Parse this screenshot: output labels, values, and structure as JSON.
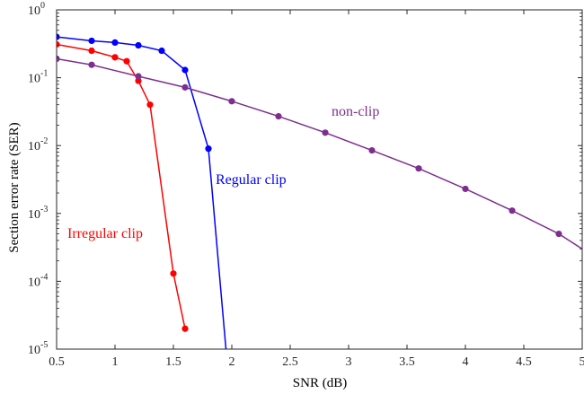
{
  "chart_data": {
    "type": "line",
    "xlabel": "SNR (dB)",
    "ylabel": "Section error rate (SER)",
    "xlim": [
      0.5,
      5
    ],
    "ylim": [
      1e-05,
      1
    ],
    "yscale": "log",
    "grid": false,
    "x_ticks": [
      0.5,
      1,
      1.5,
      2,
      2.5,
      3,
      3.5,
      4,
      4.5,
      5
    ],
    "x_tick_labels": [
      "0.5",
      "1",
      "1.5",
      "2",
      "2.5",
      "3",
      "3.5",
      "4",
      "4.5",
      "5"
    ],
    "y_ticks": [
      {
        "value": 1,
        "base": "10",
        "exp": "0"
      },
      {
        "value": 0.1,
        "base": "10",
        "exp": "-1"
      },
      {
        "value": 0.01,
        "base": "10",
        "exp": "-2"
      },
      {
        "value": 0.001,
        "base": "10",
        "exp": "-3"
      },
      {
        "value": 0.0001,
        "base": "10",
        "exp": "-4"
      },
      {
        "value": 1e-05,
        "base": "10",
        "exp": "-5"
      }
    ],
    "series": [
      {
        "name": "Irregular clip",
        "color": "#ff0000",
        "x": [
          0.5,
          0.8,
          1.0,
          1.1,
          1.2,
          1.3,
          1.5,
          1.6
        ],
        "y": [
          0.31,
          0.25,
          0.2,
          0.175,
          0.09,
          0.04,
          0.00013,
          2e-05
        ],
        "markers": true
      },
      {
        "name": "Regular clip",
        "color": "#0000ff",
        "x": [
          0.5,
          0.8,
          1.0,
          1.2,
          1.4,
          1.6,
          1.8,
          1.95
        ],
        "y": [
          0.4,
          0.35,
          0.33,
          0.3,
          0.25,
          0.13,
          0.009,
          1e-05
        ],
        "markers": true,
        "marker_count": 7
      },
      {
        "name": "non-clip",
        "color": "#7e2f8e",
        "x": [
          0.5,
          0.8,
          1.2,
          1.6,
          2.0,
          2.4,
          2.8,
          3.2,
          3.6,
          4.0,
          4.4,
          4.8,
          5.0
        ],
        "y": [
          0.19,
          0.155,
          0.105,
          0.072,
          0.045,
          0.027,
          0.0155,
          0.0085,
          0.0046,
          0.0023,
          0.0011,
          0.0005,
          0.0003
        ],
        "markers": true,
        "marker_count": 12
      }
    ]
  }
}
